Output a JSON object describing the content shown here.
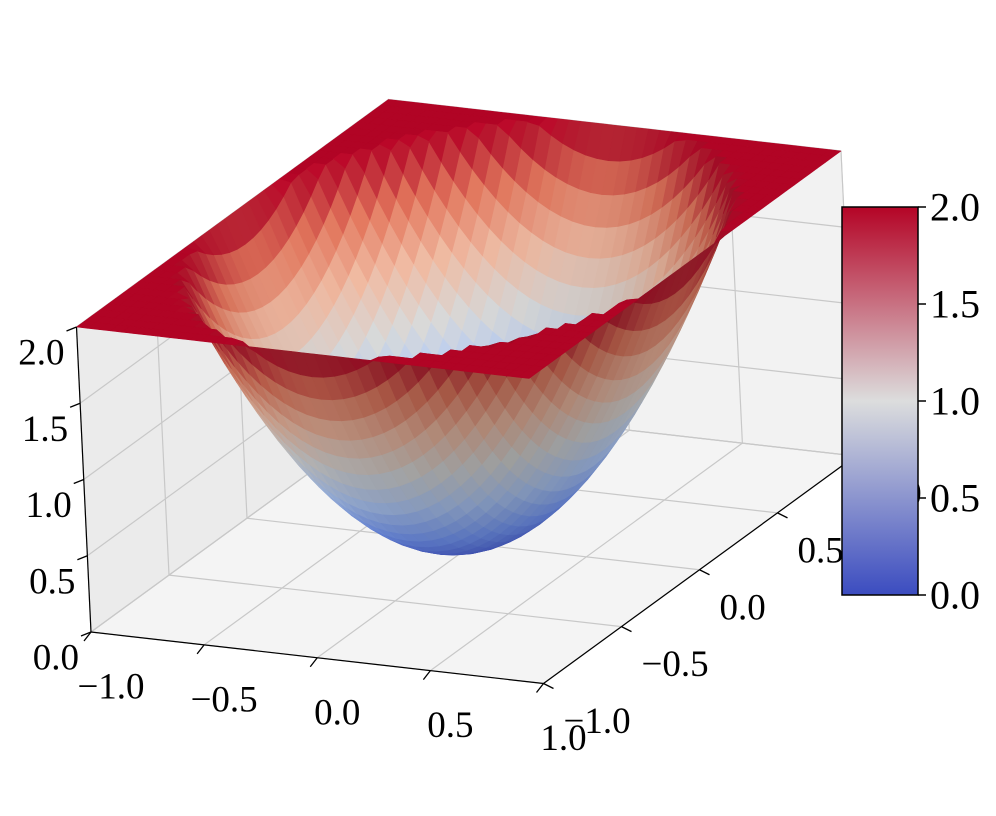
{
  "chart_data": {
    "type": "surface3d",
    "title": "",
    "xlabel": "",
    "ylabel": "",
    "zlabel": "",
    "x_ticks": [
      "−1.0",
      "−0.5",
      "0.0",
      "0.5",
      "1.0"
    ],
    "y_ticks": [
      "−1.0",
      "−0.5",
      "0.0",
      "0.5",
      "1.0"
    ],
    "z_ticks": [
      "0.0",
      "0.5",
      "1.0",
      "1.5",
      "2.0"
    ],
    "xlim": [
      -1,
      1
    ],
    "ylim": [
      -1,
      1
    ],
    "zlim": [
      0,
      2
    ],
    "colormap": "coolwarm",
    "colormap_colors": [
      "#3b4cc0",
      "#7396f5",
      "#b0cbfc",
      "#dcdddd",
      "#f6bfa6",
      "#ea7b60",
      "#b40426"
    ],
    "surface_function": "min(2, 2*(x^2 + y^2))",
    "clip_value": 2.0,
    "grid_points": 40,
    "colorbar": {
      "ticks": [
        "0.0",
        "0.5",
        "1.0",
        "1.5",
        "2.0"
      ],
      "min": 0,
      "max": 2,
      "position": "right"
    },
    "grid": true,
    "pane_color": "#f2f2f2"
  }
}
